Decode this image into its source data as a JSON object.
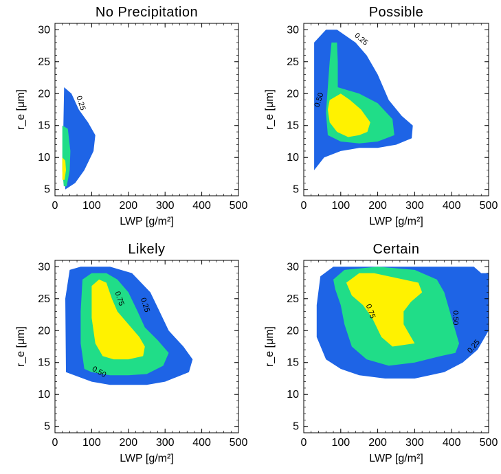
{
  "chart_data": [
    {
      "type": "contour",
      "title": "No Precipitation",
      "xlabel": "LWP [g/m²]",
      "ylabel": "r_e [μm]",
      "xlim": [
        0,
        500
      ],
      "ylim": [
        4,
        31
      ],
      "xticks": [
        "0",
        "100",
        "200",
        "300",
        "400",
        "500"
      ],
      "yticks": [
        "5",
        "10",
        "15",
        "20",
        "25",
        "30"
      ],
      "levels": [
        {
          "level": 0.25,
          "color": "#1E64E6",
          "polygon": [
            [
              25,
              21
            ],
            [
              45,
              20
            ],
            [
              65,
              17.5
            ],
            [
              90,
              15.5
            ],
            [
              110,
              13.5
            ],
            [
              105,
              11
            ],
            [
              80,
              8
            ],
            [
              55,
              6
            ],
            [
              28,
              5
            ],
            [
              22,
              12
            ]
          ]
        },
        {
          "level": 0.5,
          "color": "#20DD88",
          "polygon": [
            [
              20,
              15
            ],
            [
              35,
              14.5
            ],
            [
              42,
              11
            ],
            [
              40,
              8
            ],
            [
              32,
              5.5
            ],
            [
              24,
              5.5
            ],
            [
              20,
              8
            ]
          ]
        },
        {
          "level": 0.75,
          "color": "#FFF200",
          "polygon": [
            [
              20,
              10
            ],
            [
              28,
              9.5
            ],
            [
              30,
              8
            ],
            [
              26,
              6.5
            ],
            [
              20,
              6.5
            ]
          ]
        }
      ],
      "contour_labels": [
        {
          "text": "0.25",
          "x": 70,
          "y": 18.5,
          "angle": 72
        }
      ]
    },
    {
      "type": "contour",
      "title": "Possible",
      "xlabel": "LWP [g/m²]",
      "ylabel": "r_e [μm]",
      "xlim": [
        0,
        500
      ],
      "ylim": [
        4,
        31
      ],
      "xticks": [
        "0",
        "100",
        "200",
        "300",
        "400",
        "500"
      ],
      "yticks": [
        "5",
        "10",
        "15",
        "20",
        "25",
        "30"
      ],
      "levels": [
        {
          "level": 0.25,
          "color": "#1E64E6",
          "polygon": [
            [
              28,
              28
            ],
            [
              60,
              30
            ],
            [
              90,
              30
            ],
            [
              140,
              28
            ],
            [
              170,
              26
            ],
            [
              200,
              23
            ],
            [
              230,
              19
            ],
            [
              265,
              16.5
            ],
            [
              295,
              15
            ],
            [
              292,
              13
            ],
            [
              250,
              12
            ],
            [
              200,
              11.5
            ],
            [
              150,
              11.5
            ],
            [
              100,
              11
            ],
            [
              55,
              10
            ],
            [
              28,
              8
            ]
          ]
        },
        {
          "level": 0.5,
          "color": "#20DD88",
          "polygon": [
            [
              75,
              28
            ],
            [
              90,
              28
            ],
            [
              92,
              25
            ],
            [
              92,
              21
            ],
            [
              150,
              20
            ],
            [
              200,
              18.5
            ],
            [
              240,
              16
            ],
            [
              245,
              13.5
            ],
            [
              200,
              12.5
            ],
            [
              150,
              12.2
            ],
            [
              100,
              12.5
            ],
            [
              65,
              13.5
            ],
            [
              60,
              17
            ],
            [
              65,
              21
            ],
            [
              70,
              25
            ]
          ]
        },
        {
          "level": 0.75,
          "color": "#FFF200",
          "polygon": [
            [
              70,
              19
            ],
            [
              100,
              20
            ],
            [
              125,
              19
            ],
            [
              155,
              17.5
            ],
            [
              180,
              15.5
            ],
            [
              172,
              14
            ],
            [
              150,
              13.5
            ],
            [
              120,
              13.2
            ],
            [
              90,
              14
            ],
            [
              70,
              15.5
            ],
            [
              65,
              17.5
            ]
          ]
        }
      ],
      "contour_labels": [
        {
          "text": "0.25",
          "x": 155,
          "y": 28.5,
          "angle": 40
        },
        {
          "text": "0.50",
          "x": 42,
          "y": 19,
          "angle": -72
        }
      ]
    },
    {
      "type": "contour",
      "title": "Likely",
      "xlabel": "LWP [g/m²]",
      "ylabel": "r_e [μm]",
      "xlim": [
        0,
        500
      ],
      "ylim": [
        4,
        31
      ],
      "xticks": [
        "0",
        "100",
        "200",
        "300",
        "400",
        "500"
      ],
      "yticks": [
        "5",
        "10",
        "15",
        "20",
        "25",
        "30"
      ],
      "levels": [
        {
          "level": 0.25,
          "color": "#1E64E6",
          "polygon": [
            [
              40,
              29.5
            ],
            [
              70,
              30
            ],
            [
              150,
              30
            ],
            [
              210,
              29
            ],
            [
              260,
              26
            ],
            [
              285,
              23
            ],
            [
              310,
              20
            ],
            [
              350,
              17.5
            ],
            [
              375,
              15.5
            ],
            [
              365,
              13.5
            ],
            [
              300,
              12
            ],
            [
              250,
              11.5
            ],
            [
              200,
              11.5
            ],
            [
              150,
              11.5
            ],
            [
              100,
              12
            ],
            [
              30,
              13.5
            ],
            [
              28,
              25
            ]
          ]
        },
        {
          "level": 0.5,
          "color": "#20DD88",
          "polygon": [
            [
              75,
              28
            ],
            [
              100,
              29
            ],
            [
              140,
              29
            ],
            [
              170,
              28
            ],
            [
              200,
              26
            ],
            [
              225,
              23
            ],
            [
              245,
              20.5
            ],
            [
              280,
              18.5
            ],
            [
              310,
              16.5
            ],
            [
              295,
              14.5
            ],
            [
              250,
              13.2
            ],
            [
              200,
              13
            ],
            [
              150,
              13
            ],
            [
              100,
              13.5
            ],
            [
              80,
              14
            ],
            [
              70,
              18
            ],
            [
              70,
              23
            ]
          ]
        },
        {
          "level": 0.75,
          "color": "#FFF200",
          "polygon": [
            [
              100,
              27
            ],
            [
              120,
              28
            ],
            [
              140,
              27.5
            ],
            [
              155,
              25
            ],
            [
              170,
              23
            ],
            [
              200,
              21
            ],
            [
              230,
              19
            ],
            [
              245,
              17.5
            ],
            [
              240,
              16
            ],
            [
              200,
              15.5
            ],
            [
              160,
              15.5
            ],
            [
              130,
              16
            ],
            [
              110,
              18
            ],
            [
              100,
              22
            ]
          ]
        }
      ],
      "contour_labels": [
        {
          "text": "0.25",
          "x": 245,
          "y": 24,
          "angle": 72
        },
        {
          "text": "0.75",
          "x": 175,
          "y": 25,
          "angle": 72
        },
        {
          "text": "0.50",
          "x": 120,
          "y": 13.5,
          "angle": 30
        }
      ]
    },
    {
      "type": "contour",
      "title": "Certain",
      "xlabel": "LWP [g/m²]",
      "ylabel": "r_e [μm]",
      "xlim": [
        0,
        500
      ],
      "ylim": [
        4,
        31
      ],
      "xticks": [
        "0",
        "100",
        "200",
        "300",
        "400",
        "500"
      ],
      "yticks": [
        "5",
        "10",
        "15",
        "20",
        "25",
        "30"
      ],
      "levels": [
        {
          "level": 0.25,
          "color": "#1E64E6",
          "polygon": [
            [
              45,
              28.5
            ],
            [
              80,
              30
            ],
            [
              460,
              30
            ],
            [
              480,
              29
            ],
            [
              500,
              29
            ],
            [
              500,
              20
            ],
            [
              470,
              17
            ],
            [
              430,
              15
            ],
            [
              380,
              13.5
            ],
            [
              300,
              12.5
            ],
            [
              220,
              12.5
            ],
            [
              150,
              13
            ],
            [
              100,
              14
            ],
            [
              60,
              15.5
            ],
            [
              35,
              19
            ],
            [
              35,
              24
            ]
          ]
        },
        {
          "level": 0.5,
          "color": "#20DD88",
          "polygon": [
            [
              80,
              28
            ],
            [
              110,
              29.5
            ],
            [
              200,
              30
            ],
            [
              300,
              29.5
            ],
            [
              360,
              28
            ],
            [
              380,
              26
            ],
            [
              400,
              22
            ],
            [
              420,
              18
            ],
            [
              410,
              16.5
            ],
            [
              370,
              16
            ],
            [
              300,
              15
            ],
            [
              230,
              14.5
            ],
            [
              170,
              15.5
            ],
            [
              130,
              17.5
            ],
            [
              110,
              21
            ],
            [
              100,
              24
            ],
            [
              85,
              26.5
            ]
          ]
        },
        {
          "level": 0.75,
          "color": "#FFF200",
          "polygon": [
            [
              115,
              27.5
            ],
            [
              150,
              29
            ],
            [
              190,
              29
            ],
            [
              230,
              28.5
            ],
            [
              270,
              28
            ],
            [
              310,
              27.5
            ],
            [
              320,
              26
            ],
            [
              290,
              24.5
            ],
            [
              270,
              23
            ],
            [
              270,
              21
            ],
            [
              290,
              19
            ],
            [
              300,
              18
            ],
            [
              240,
              17.5
            ],
            [
              210,
              19
            ],
            [
              185,
              22
            ],
            [
              160,
              24
            ],
            [
              130,
              25.5
            ]
          ]
        }
      ],
      "contour_labels": [
        {
          "text": "0.75",
          "x": 180,
          "y": 23,
          "angle": 70
        },
        {
          "text": "0.50",
          "x": 410,
          "y": 22,
          "angle": 90
        },
        {
          "text": "0.25",
          "x": 460,
          "y": 17.5,
          "angle": -50
        }
      ]
    }
  ]
}
